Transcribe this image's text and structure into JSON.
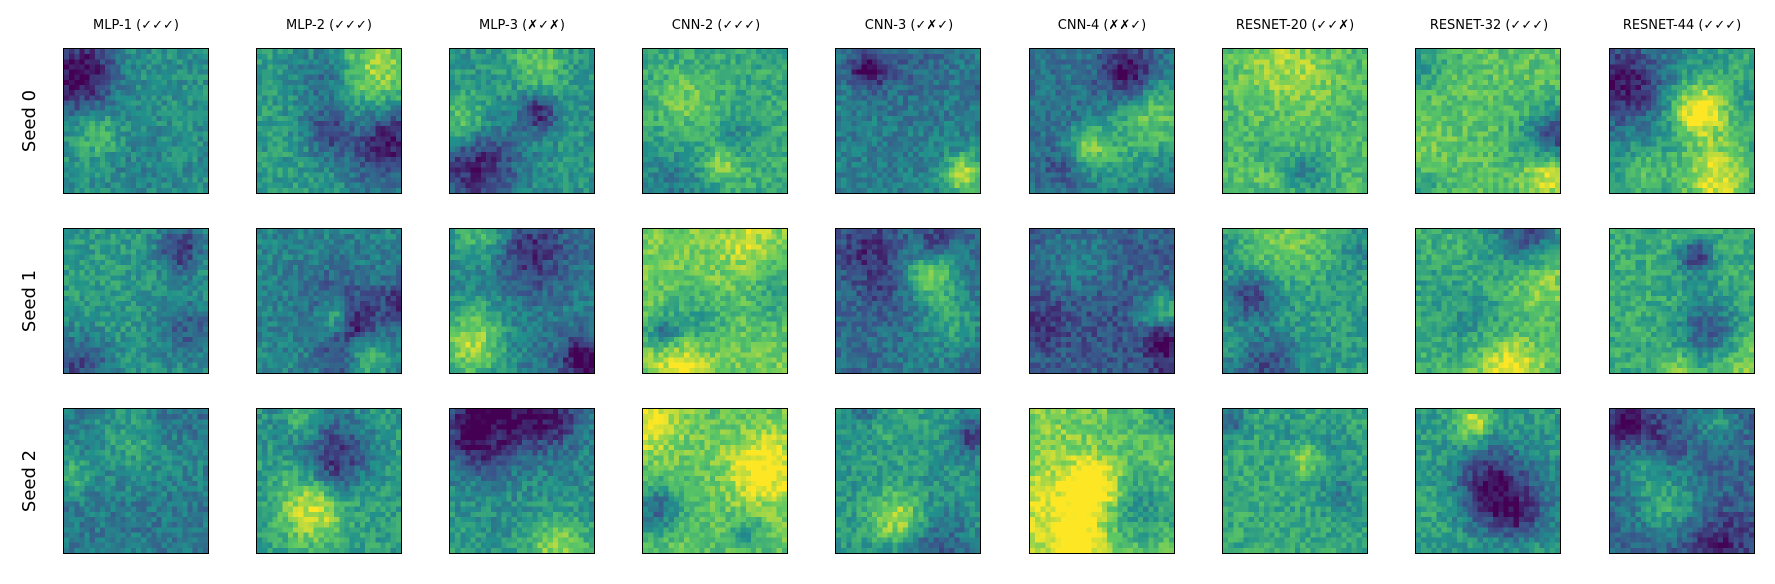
{
  "chart_data": {
    "type": "heatmap",
    "title": "",
    "xlabel": "",
    "ylabel": "",
    "colormap": "viridis",
    "colormap_colors": [
      "#440154",
      "#3b528b",
      "#21918c",
      "#5ec962",
      "#fde725"
    ],
    "grid": false,
    "axis_ticks": false,
    "columns": [
      "MLP-1 (✓✓✓)",
      "MLP-2 (✓✓✓)",
      "MLP-3 (✗✓✗)",
      "CNN-2 (✓✓✓)",
      "CNN-3 (✓✗✓)",
      "CNN-4 (✗✗✓)",
      "RESNET-20 (✓✓✗)",
      "RESNET-32 (✓✓✓)",
      "RESNET-44 (✓✓✓)"
    ],
    "rows": [
      "Seed 0",
      "Seed 1",
      "Seed 2"
    ],
    "panel_grid": "28x28",
    "panel_mean_level": [
      [
        0.5,
        0.55,
        0.52,
        0.6,
        0.42,
        0.38,
        0.68,
        0.72,
        0.5
      ],
      [
        0.55,
        0.45,
        0.42,
        0.78,
        0.35,
        0.3,
        0.55,
        0.65,
        0.62
      ],
      [
        0.4,
        0.55,
        0.48,
        0.72,
        0.52,
        0.8,
        0.6,
        0.55,
        0.32
      ]
    ]
  }
}
